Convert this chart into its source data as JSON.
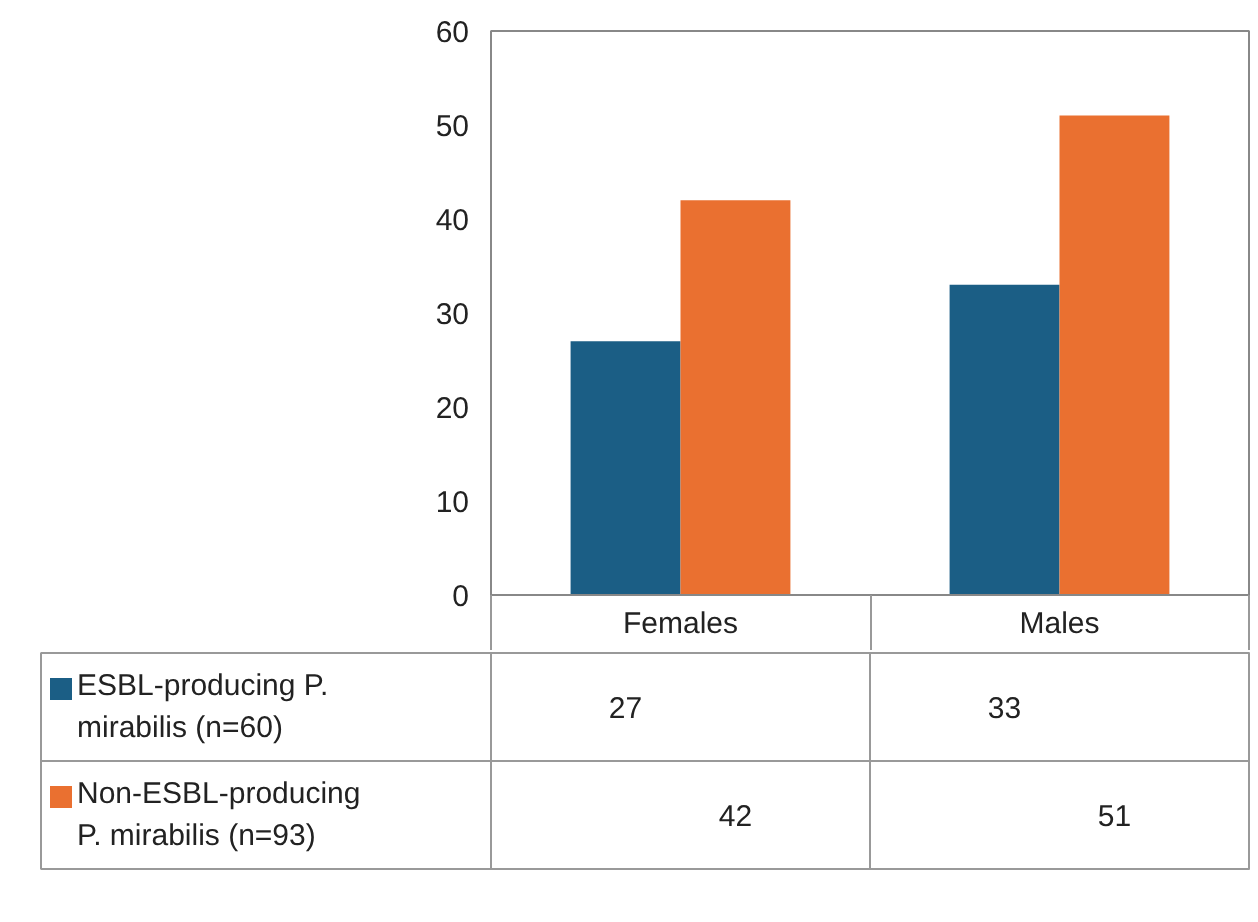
{
  "chart_data": {
    "type": "bar",
    "categories": [
      "Females",
      "Males"
    ],
    "series": [
      {
        "name": "ESBL-producing P. mirabilis (n=60)",
        "color": "#1b5e85",
        "values": [
          27,
          33
        ]
      },
      {
        "name": "Non-ESBL-producing P. mirabilis (n=93)",
        "color": "#ea7030",
        "values": [
          42,
          51
        ]
      }
    ],
    "ylim": [
      0,
      60
    ],
    "yticks": [
      0,
      10,
      20,
      30,
      40,
      50,
      60
    ],
    "grid": false,
    "legend": "bottom",
    "data_labels": true
  }
}
